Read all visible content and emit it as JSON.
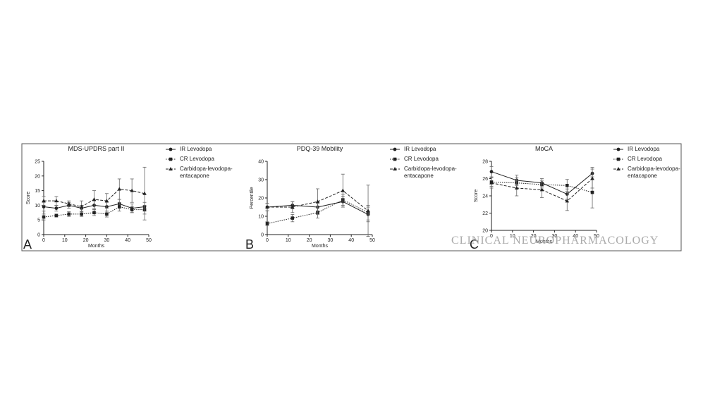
{
  "chart_data": [
    {
      "type": "line",
      "title": "MDS-UPDRS part II",
      "panel_label": "A",
      "x_label": "Months",
      "y_label": "Score",
      "x": [
        0,
        6,
        12,
        18,
        24,
        30,
        36,
        42,
        48
      ],
      "series": [
        {
          "name": "IR Levodopa",
          "color": "#222222",
          "marker": "circle",
          "line_style": "solid",
          "values": [
            9.5,
            9,
            10,
            9,
            10,
            9.5,
            10.5,
            9,
            9.5
          ],
          "errors": [
            1.5,
            1,
            1,
            1,
            1.5,
            1.5,
            1.5,
            1.5,
            1.5
          ]
        },
        {
          "name": "CR Levodopa",
          "color": "#222222",
          "marker": "square",
          "line_style": "dotted",
          "values": [
            6,
            6.5,
            7,
            7,
            7.5,
            7,
            9.5,
            8.5,
            8.5
          ],
          "errors": [
            1,
            0.5,
            0.8,
            0.8,
            1,
            1,
            1.5,
            1,
            1.5
          ]
        },
        {
          "name": "Carbidopa-levodopa-entacapone",
          "color": "#222222",
          "marker": "triangle",
          "line_style": "dashed",
          "values": [
            11.5,
            11.5,
            10.5,
            9.5,
            12,
            11.5,
            15.5,
            15,
            14
          ],
          "errors": [
            1.5,
            1.5,
            1,
            2,
            3,
            2.5,
            3.5,
            4,
            9
          ]
        }
      ],
      "xlim": [
        0,
        50
      ],
      "xticks": [
        0,
        10,
        20,
        30,
        40,
        50
      ],
      "ylim": [
        0,
        25
      ],
      "yticks": [
        0,
        5,
        10,
        15,
        20,
        25
      ]
    },
    {
      "type": "line",
      "title": "PDQ-39 Mobility",
      "panel_label": "B",
      "x_label": "Months",
      "y_label": "Percentile",
      "x": [
        0,
        12,
        24,
        36,
        48
      ],
      "series": [
        {
          "name": "IR Levodopa",
          "color": "#222222",
          "marker": "circle",
          "line_style": "solid",
          "values": [
            15,
            16,
            15,
            18,
            11
          ],
          "errors": [
            2,
            2,
            2,
            3,
            4
          ]
        },
        {
          "name": "CR Levodopa",
          "color": "#222222",
          "marker": "square",
          "line_style": "dotted",
          "values": [
            6,
            9,
            12,
            19,
            12
          ],
          "errors": [
            1,
            2,
            3,
            3,
            4
          ]
        },
        {
          "name": "Carbidopa-levodopa-entacapone",
          "color": "#222222",
          "marker": "triangle",
          "line_style": "dashed",
          "values": [
            15,
            15,
            18,
            24,
            13
          ],
          "errors": [
            2,
            3,
            7,
            9,
            14
          ]
        }
      ],
      "xlim": [
        0,
        50
      ],
      "xticks": [
        0,
        10,
        20,
        30,
        40,
        50
      ],
      "ylim": [
        0,
        40
      ],
      "yticks": [
        0,
        10,
        20,
        30,
        40
      ]
    },
    {
      "type": "line",
      "title": "MoCA",
      "panel_label": "C",
      "x_label": "Months",
      "y_label": "Score",
      "x": [
        0,
        12,
        24,
        36,
        48
      ],
      "series": [
        {
          "name": "IR Levodopa",
          "color": "#222222",
          "marker": "circle",
          "line_style": "solid",
          "values": [
            26.8,
            25.8,
            25.5,
            24.2,
            26.6
          ],
          "errors": [
            0.6,
            0.6,
            0.5,
            0.6,
            0.7
          ]
        },
        {
          "name": "CR Levodopa",
          "color": "#222222",
          "marker": "square",
          "line_style": "dotted",
          "values": [
            25.6,
            25.5,
            25.3,
            25.2,
            24.4
          ],
          "errors": [
            0.5,
            0.6,
            0.5,
            0.7,
            1.8
          ]
        },
        {
          "name": "Carbidopa-levodopa-entacapone",
          "color": "#222222",
          "marker": "triangle",
          "line_style": "dashed",
          "values": [
            25.5,
            24.9,
            24.7,
            23.4,
            26
          ],
          "errors": [
            0.6,
            0.9,
            0.9,
            1.1,
            1.1
          ]
        }
      ],
      "xlim": [
        0,
        50
      ],
      "xticks": [
        0,
        10,
        20,
        30,
        40,
        50
      ],
      "ylim": [
        20,
        28
      ],
      "yticks": [
        20,
        22,
        24,
        26,
        28
      ]
    }
  ],
  "watermark": "CLINICAL NEUROPHARMACOLOGY"
}
